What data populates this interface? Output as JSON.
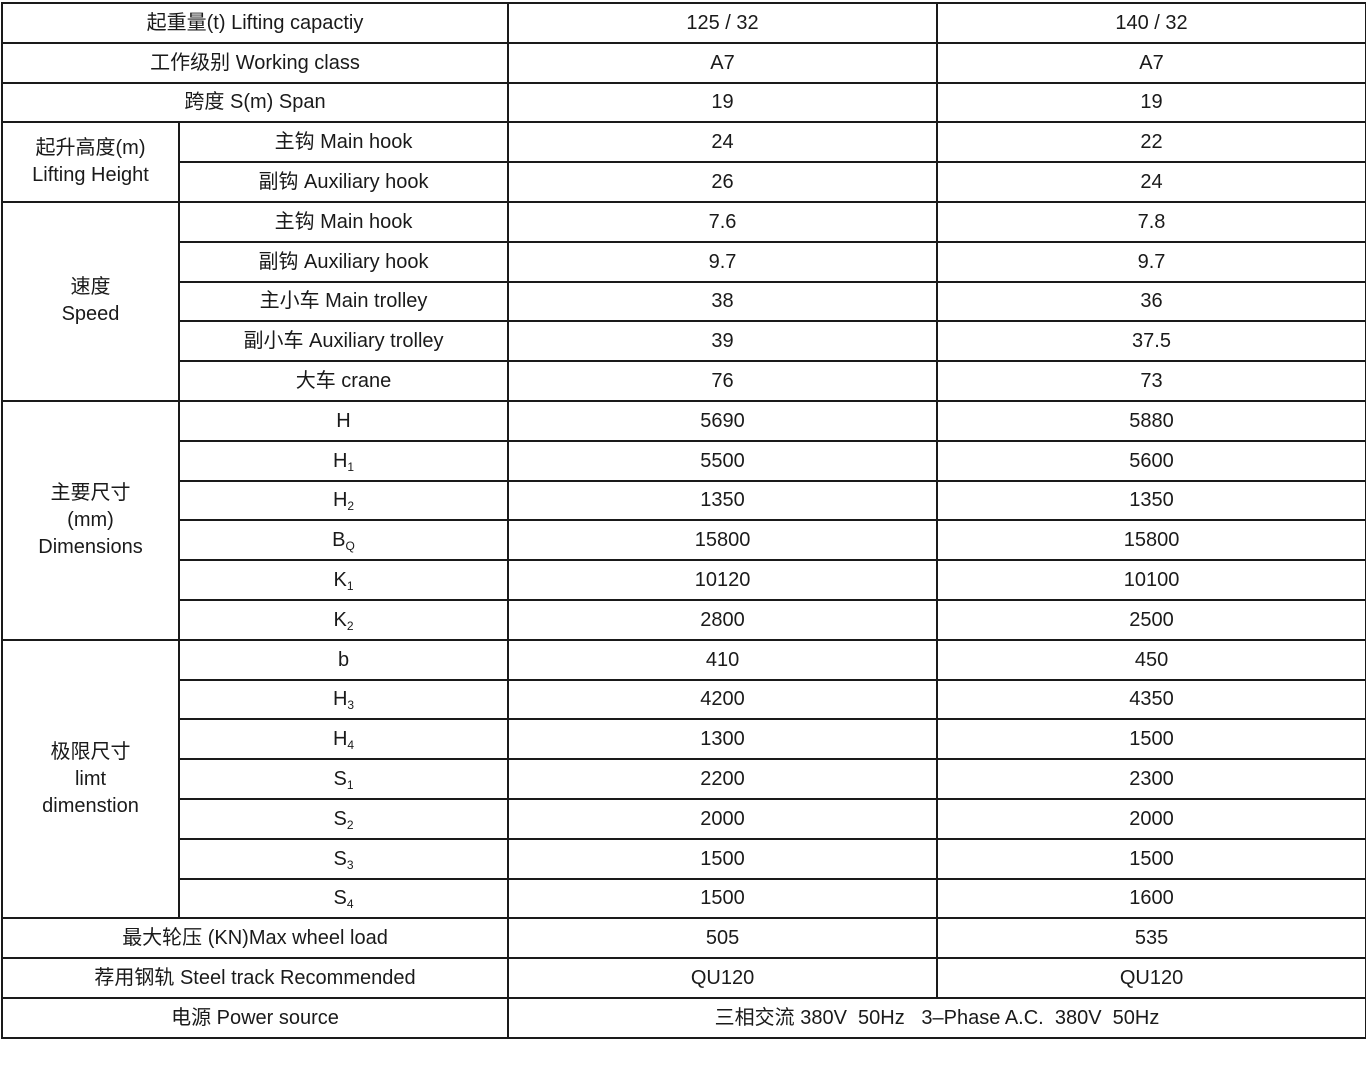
{
  "table": {
    "single_rows_top": [
      {
        "label": "起重量(t) Lifting capactiy",
        "values": [
          "125 / 32",
          "140 / 32"
        ]
      },
      {
        "label": "工作级别 Working class",
        "values": [
          "A7",
          "A7"
        ]
      },
      {
        "label": "跨度 S(m) Span",
        "values": [
          "19",
          "19"
        ]
      }
    ],
    "groups": [
      {
        "lines": [
          "起升高度(m)",
          "Lifting Height"
        ],
        "rows": [
          {
            "label": "主钩 Main hook",
            "sub": "",
            "values": [
              "24",
              "22"
            ]
          },
          {
            "label": "副钩 Auxiliary hook",
            "sub": "",
            "values": [
              "26",
              "24"
            ]
          }
        ]
      },
      {
        "lines": [
          "速度",
          "Speed"
        ],
        "rows": [
          {
            "label": "主钩 Main hook",
            "sub": "",
            "values": [
              "7.6",
              "7.8"
            ]
          },
          {
            "label": "副钩 Auxiliary hook",
            "sub": "",
            "values": [
              "9.7",
              "9.7"
            ]
          },
          {
            "label": "主小车 Main trolley",
            "sub": "",
            "values": [
              "38",
              "36"
            ]
          },
          {
            "label": "副小车 Auxiliary trolley",
            "sub": "",
            "values": [
              "39",
              "37.5"
            ]
          },
          {
            "label": "大车 crane",
            "sub": "",
            "values": [
              "76",
              "73"
            ]
          }
        ]
      },
      {
        "lines": [
          "主要尺寸",
          "(mm)",
          "Dimensions"
        ],
        "rows": [
          {
            "label": "H",
            "sub": "",
            "values": [
              "5690",
              "5880"
            ]
          },
          {
            "label": "H",
            "sub": "1",
            "values": [
              "5500",
              "5600"
            ]
          },
          {
            "label": "H",
            "sub": "2",
            "values": [
              "1350",
              "1350"
            ]
          },
          {
            "label": "B",
            "sub": "Q",
            "values": [
              "15800",
              "15800"
            ]
          },
          {
            "label": "K",
            "sub": "1",
            "values": [
              "10120",
              "10100"
            ]
          },
          {
            "label": "K",
            "sub": "2",
            "values": [
              "2800",
              "2500"
            ]
          }
        ]
      },
      {
        "lines": [
          "极限尺寸",
          "limt",
          "dimenstion"
        ],
        "rows": [
          {
            "label": "b",
            "sub": "",
            "values": [
              "410",
              "450"
            ]
          },
          {
            "label": "H",
            "sub": "3",
            "values": [
              "4200",
              "4350"
            ]
          },
          {
            "label": "H",
            "sub": "4",
            "values": [
              "1300",
              "1500"
            ]
          },
          {
            "label": "S",
            "sub": "1",
            "values": [
              "2200",
              "2300"
            ]
          },
          {
            "label": "S",
            "sub": "2",
            "values": [
              "2000",
              "2000"
            ]
          },
          {
            "label": "S",
            "sub": "3",
            "values": [
              "1500",
              "1500"
            ]
          },
          {
            "label": "S",
            "sub": "4",
            "values": [
              "1500",
              "1600"
            ]
          }
        ]
      }
    ],
    "single_rows_bottom": [
      {
        "label": "最大轮压 (KN)Max wheel load",
        "values": [
          "505",
          "535"
        ]
      },
      {
        "label": "荐用钢轨 Steel track Recommended",
        "values": [
          "QU120",
          "QU120"
        ]
      }
    ],
    "power_row": {
      "label": "电源 Power source",
      "value": "三相交流 380V  50Hz   3–Phase A.C.  380V  50Hz"
    }
  }
}
